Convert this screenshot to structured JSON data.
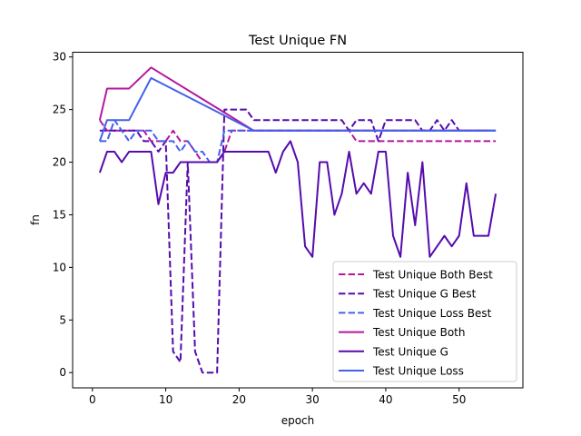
{
  "chart_data": {
    "type": "line",
    "title": "Test Unique FN",
    "xlabel": "epoch",
    "ylabel": "fn",
    "xlim": [
      -2.7,
      58.7
    ],
    "ylim": [
      -1.45,
      30.45
    ],
    "xticks": [
      0,
      10,
      20,
      30,
      40,
      50
    ],
    "yticks": [
      0,
      5,
      10,
      15,
      20,
      25,
      30
    ],
    "grid": false,
    "legend_position": "lower-right",
    "series": [
      {
        "name": "Test Unique Both Best",
        "color": "#b5179e",
        "dash": true,
        "points": [
          [
            1,
            24
          ],
          [
            2,
            23
          ],
          [
            3,
            23
          ],
          [
            4,
            23
          ],
          [
            5,
            23
          ],
          [
            6,
            23
          ],
          [
            7,
            23
          ],
          [
            8,
            22
          ],
          [
            9,
            22
          ],
          [
            10,
            22
          ],
          [
            11,
            23
          ],
          [
            12,
            22
          ],
          [
            13,
            22
          ],
          [
            14,
            21
          ],
          [
            15,
            20
          ],
          [
            16,
            20
          ],
          [
            17,
            20
          ],
          [
            18,
            21
          ],
          [
            19,
            23
          ],
          [
            20,
            23
          ],
          [
            21,
            23
          ],
          [
            22,
            23
          ],
          [
            23,
            23
          ],
          [
            24,
            23
          ],
          [
            25,
            23
          ],
          [
            26,
            23
          ],
          [
            27,
            23
          ],
          [
            28,
            23
          ],
          [
            29,
            23
          ],
          [
            30,
            23
          ],
          [
            31,
            23
          ],
          [
            32,
            23
          ],
          [
            33,
            23
          ],
          [
            34,
            23
          ],
          [
            35,
            23
          ],
          [
            36,
            22
          ],
          [
            37,
            22
          ],
          [
            38,
            22
          ],
          [
            39,
            22
          ],
          [
            40,
            22
          ],
          [
            41,
            22
          ],
          [
            42,
            22
          ],
          [
            43,
            22
          ],
          [
            44,
            22
          ],
          [
            45,
            22
          ],
          [
            46,
            22
          ],
          [
            47,
            22
          ],
          [
            48,
            22
          ],
          [
            49,
            22
          ],
          [
            50,
            22
          ],
          [
            51,
            22
          ],
          [
            52,
            22
          ],
          [
            53,
            22
          ],
          [
            54,
            22
          ],
          [
            55,
            22
          ]
        ]
      },
      {
        "name": "Test Unique G Best",
        "color": "#560bad",
        "dash": true,
        "points": [
          [
            1,
            23
          ],
          [
            2,
            23
          ],
          [
            3,
            23
          ],
          [
            4,
            23
          ],
          [
            5,
            23
          ],
          [
            6,
            23
          ],
          [
            7,
            22
          ],
          [
            8,
            22
          ],
          [
            9,
            21
          ],
          [
            10,
            22
          ],
          [
            11,
            2
          ],
          [
            12,
            1
          ],
          [
            13,
            20
          ],
          [
            14,
            2
          ],
          [
            15,
            0
          ],
          [
            16,
            0
          ],
          [
            17,
            0
          ],
          [
            18,
            25
          ],
          [
            19,
            25
          ],
          [
            20,
            25
          ],
          [
            21,
            25
          ],
          [
            22,
            24
          ],
          [
            23,
            24
          ],
          [
            24,
            24
          ],
          [
            25,
            24
          ],
          [
            26,
            24
          ],
          [
            27,
            24
          ],
          [
            28,
            24
          ],
          [
            29,
            24
          ],
          [
            30,
            24
          ],
          [
            31,
            24
          ],
          [
            32,
            24
          ],
          [
            33,
            24
          ],
          [
            34,
            24
          ],
          [
            35,
            23
          ],
          [
            36,
            24
          ],
          [
            37,
            24
          ],
          [
            38,
            24
          ],
          [
            39,
            22
          ],
          [
            40,
            24
          ],
          [
            41,
            24
          ],
          [
            42,
            24
          ],
          [
            43,
            24
          ],
          [
            44,
            24
          ],
          [
            45,
            23
          ],
          [
            46,
            23
          ],
          [
            47,
            24
          ],
          [
            48,
            23
          ],
          [
            49,
            24
          ],
          [
            50,
            23
          ],
          [
            51,
            23
          ],
          [
            52,
            23
          ],
          [
            53,
            23
          ],
          [
            54,
            23
          ],
          [
            55,
            23
          ]
        ]
      },
      {
        "name": "Test Unique Loss Best",
        "color": "#4361ee",
        "dash": true,
        "points": [
          [
            1,
            22
          ],
          [
            2,
            22
          ],
          [
            3,
            24
          ],
          [
            4,
            23
          ],
          [
            5,
            22
          ],
          [
            6,
            23
          ],
          [
            7,
            23
          ],
          [
            8,
            23
          ],
          [
            9,
            22
          ],
          [
            10,
            22
          ],
          [
            11,
            22
          ],
          [
            12,
            21
          ],
          [
            13,
            22
          ],
          [
            14,
            21
          ],
          [
            15,
            21
          ],
          [
            16,
            20
          ],
          [
            17,
            20
          ],
          [
            18,
            23
          ],
          [
            19,
            23
          ],
          [
            20,
            23
          ],
          [
            21,
            23
          ],
          [
            22,
            23
          ],
          [
            23,
            23
          ],
          [
            24,
            23
          ],
          [
            25,
            23
          ],
          [
            26,
            23
          ],
          [
            27,
            23
          ],
          [
            28,
            23
          ],
          [
            29,
            23
          ],
          [
            30,
            23
          ],
          [
            31,
            23
          ],
          [
            32,
            23
          ],
          [
            33,
            23
          ],
          [
            34,
            23
          ],
          [
            35,
            23
          ],
          [
            36,
            23
          ],
          [
            37,
            23
          ],
          [
            38,
            23
          ],
          [
            39,
            23
          ],
          [
            40,
            23
          ],
          [
            41,
            23
          ],
          [
            42,
            23
          ],
          [
            43,
            23
          ],
          [
            44,
            23
          ],
          [
            45,
            23
          ],
          [
            46,
            23
          ],
          [
            47,
            23
          ],
          [
            48,
            23
          ],
          [
            49,
            23
          ],
          [
            50,
            23
          ],
          [
            51,
            23
          ],
          [
            52,
            23
          ],
          [
            53,
            23
          ],
          [
            54,
            23
          ],
          [
            55,
            23
          ]
        ]
      },
      {
        "name": "Test Unique Both",
        "color": "#b5179e",
        "dash": false,
        "points": [
          [
            1,
            24
          ],
          [
            2,
            27
          ],
          [
            3,
            27
          ],
          [
            4,
            27
          ],
          [
            5,
            27
          ],
          [
            8,
            29
          ],
          [
            22,
            23
          ],
          [
            54,
            23
          ]
        ]
      },
      {
        "name": "Test Unique G",
        "color": "#560bad",
        "dash": false,
        "points": [
          [
            1,
            19
          ],
          [
            2,
            21
          ],
          [
            3,
            21
          ],
          [
            4,
            20
          ],
          [
            5,
            21
          ],
          [
            6,
            21
          ],
          [
            7,
            21
          ],
          [
            8,
            21
          ],
          [
            9,
            16
          ],
          [
            10,
            19
          ],
          [
            11,
            19
          ],
          [
            12,
            20
          ],
          [
            13,
            20
          ],
          [
            14,
            20
          ],
          [
            15,
            20
          ],
          [
            16,
            20
          ],
          [
            17,
            20
          ],
          [
            18,
            21
          ],
          [
            19,
            21
          ],
          [
            20,
            21
          ],
          [
            21,
            21
          ],
          [
            22,
            21
          ],
          [
            23,
            21
          ],
          [
            24,
            21
          ],
          [
            25,
            19
          ],
          [
            26,
            21
          ],
          [
            27,
            22
          ],
          [
            28,
            20
          ],
          [
            29,
            12
          ],
          [
            30,
            11
          ],
          [
            31,
            20
          ],
          [
            32,
            20
          ],
          [
            33,
            15
          ],
          [
            34,
            17
          ],
          [
            35,
            21
          ],
          [
            36,
            17
          ],
          [
            37,
            18
          ],
          [
            38,
            17
          ],
          [
            39,
            21
          ],
          [
            40,
            21
          ],
          [
            41,
            13
          ],
          [
            42,
            11
          ],
          [
            43,
            19
          ],
          [
            44,
            14
          ],
          [
            45,
            20
          ],
          [
            46,
            11
          ],
          [
            47,
            12
          ],
          [
            48,
            13
          ],
          [
            49,
            12
          ],
          [
            50,
            13
          ],
          [
            51,
            18
          ],
          [
            52,
            13
          ],
          [
            53,
            13
          ],
          [
            54,
            13
          ],
          [
            55,
            17
          ]
        ]
      },
      {
        "name": "Test Unique Loss",
        "color": "#4361ee",
        "dash": false,
        "points": [
          [
            1,
            22
          ],
          [
            2,
            24
          ],
          [
            3,
            24
          ],
          [
            4,
            24
          ],
          [
            5,
            24
          ],
          [
            8,
            28
          ],
          [
            22,
            23
          ],
          [
            55,
            23
          ]
        ]
      }
    ]
  }
}
